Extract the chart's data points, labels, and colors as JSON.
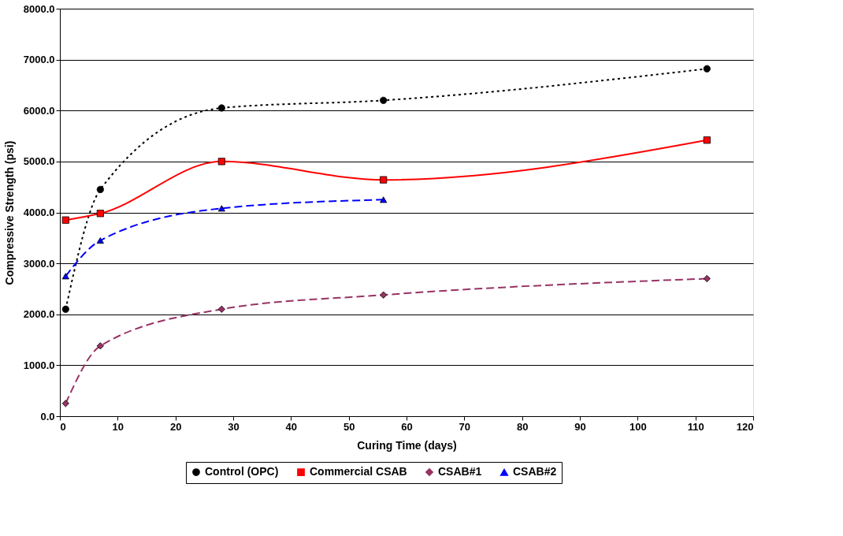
{
  "chart_data": {
    "type": "line",
    "xlabel": "Curing Time (days)",
    "ylabel": "Compressive Strength (psi)",
    "xlim": [
      0,
      120
    ],
    "xticks": [
      0,
      10,
      20,
      30,
      40,
      50,
      60,
      70,
      80,
      90,
      100,
      110,
      120
    ],
    "ylim": [
      0,
      8000
    ],
    "yticks": [
      {
        "value": 0,
        "label": "0.0"
      },
      {
        "value": 1000,
        "label": "1000.0"
      },
      {
        "value": 2000,
        "label": "2000.0"
      },
      {
        "value": 3000,
        "label": "3000.0"
      },
      {
        "value": 4000,
        "label": "4000.0"
      },
      {
        "value": 5000,
        "label": "5000.0"
      },
      {
        "value": 6000,
        "label": "6000.0"
      },
      {
        "value": 7000,
        "label": "7000.0"
      },
      {
        "value": 8000,
        "label": "8000.0"
      }
    ],
    "grid": "y",
    "legend": "bottom",
    "series": [
      {
        "name": "Control (OPC)",
        "color": "#000000",
        "marker": "circle",
        "line_style": "dotted",
        "x": [
          1,
          7,
          28,
          56,
          112
        ],
        "values": [
          2100,
          4450,
          6050,
          6200,
          6820
        ]
      },
      {
        "name": "Commercial CSAB",
        "color": "#ff0000",
        "marker": "square",
        "line_style": "solid",
        "x": [
          1,
          7,
          28,
          56,
          112
        ],
        "values": [
          3850,
          3980,
          5000,
          4640,
          5420
        ]
      },
      {
        "name": "CSAB#1",
        "color": "#993366",
        "marker": "diamond",
        "line_style": "dashed",
        "x": [
          1,
          7,
          28,
          56,
          112
        ],
        "values": [
          250,
          1380,
          2100,
          2380,
          2700
        ]
      },
      {
        "name": "CSAB#2",
        "color": "#0000ff",
        "marker": "triangle",
        "line_style": "dashed",
        "x": [
          1,
          7,
          28,
          56
        ],
        "values": [
          2750,
          3450,
          4080,
          4250
        ]
      }
    ]
  }
}
